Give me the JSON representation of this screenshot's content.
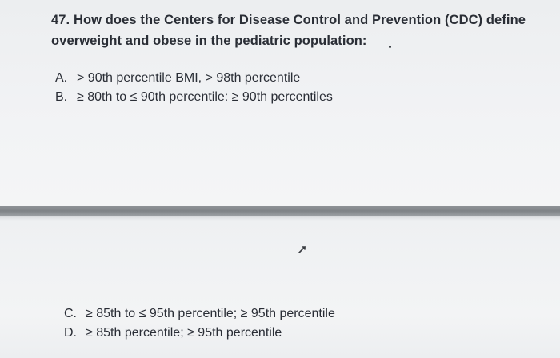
{
  "question": {
    "number": "47.",
    "line1": "How does the Centers for Disease Control and Prevention (CDC) define",
    "line2": "overweight and obese in the pediatric population:"
  },
  "options": [
    {
      "letter": "A.",
      "text": "> 90th percentile BMI, > 98th percentile"
    },
    {
      "letter": "B.",
      "text": "≥ 80th to ≤ 90th percentile: ≥ 90th percentiles"
    },
    {
      "letter": "C.",
      "text": "≥ 85th to ≤ 95th percentile; ≥ 95th percentile"
    },
    {
      "letter": "D.",
      "text": "≥ 85th percentile; ≥ 95th percentile"
    }
  ],
  "icons": {
    "cursor": "mouse-pointer-icon"
  }
}
